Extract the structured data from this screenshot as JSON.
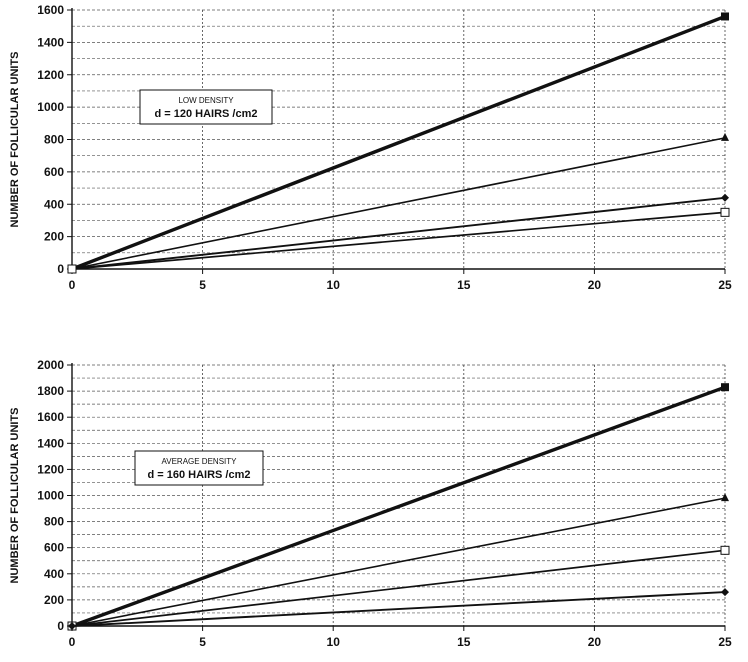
{
  "chart_data": [
    {
      "type": "line",
      "ylabel": "NUMBER OF FOLLICULAR UNITS",
      "annotation": {
        "line1": "LOW DENSITY",
        "line2": "d = 120 HAIRS /cm2"
      },
      "xlim": [
        0,
        25
      ],
      "ylim": [
        0,
        1600
      ],
      "xticks": [
        0,
        5,
        10,
        15,
        20,
        25
      ],
      "yticks": [
        0,
        200,
        400,
        600,
        800,
        1000,
        1200,
        1400,
        1600
      ],
      "grid": true,
      "series": [
        {
          "marker": "square-filled",
          "x": [
            0,
            25
          ],
          "y": [
            0,
            1560
          ]
        },
        {
          "marker": "triangle-filled",
          "x": [
            0,
            25
          ],
          "y": [
            0,
            810
          ]
        },
        {
          "marker": "diamond-filled",
          "x": [
            0,
            25
          ],
          "y": [
            0,
            440
          ]
        },
        {
          "marker": "square-open",
          "x": [
            0,
            25
          ],
          "y": [
            0,
            350
          ]
        }
      ]
    },
    {
      "type": "line",
      "ylabel": "NUMBER OF FOLLICULAR UNITS",
      "annotation": {
        "line1": "AVERAGE DENSITY",
        "line2": "d = 160 HAIRS /cm2"
      },
      "xlim": [
        0,
        25
      ],
      "ylim": [
        0,
        2000
      ],
      "xticks": [
        0,
        5,
        10,
        15,
        20,
        25
      ],
      "yticks": [
        0,
        200,
        400,
        600,
        800,
        1000,
        1200,
        1400,
        1600,
        1800,
        2000
      ],
      "grid": true,
      "series": [
        {
          "marker": "square-filled",
          "x": [
            0,
            25
          ],
          "y": [
            0,
            1830
          ]
        },
        {
          "marker": "triangle-filled",
          "x": [
            0,
            25
          ],
          "y": [
            0,
            980
          ]
        },
        {
          "marker": "square-open",
          "x": [
            0,
            25
          ],
          "y": [
            0,
            580
          ]
        },
        {
          "marker": "diamond-filled",
          "x": [
            0,
            25
          ],
          "y": [
            0,
            260
          ]
        }
      ]
    }
  ]
}
